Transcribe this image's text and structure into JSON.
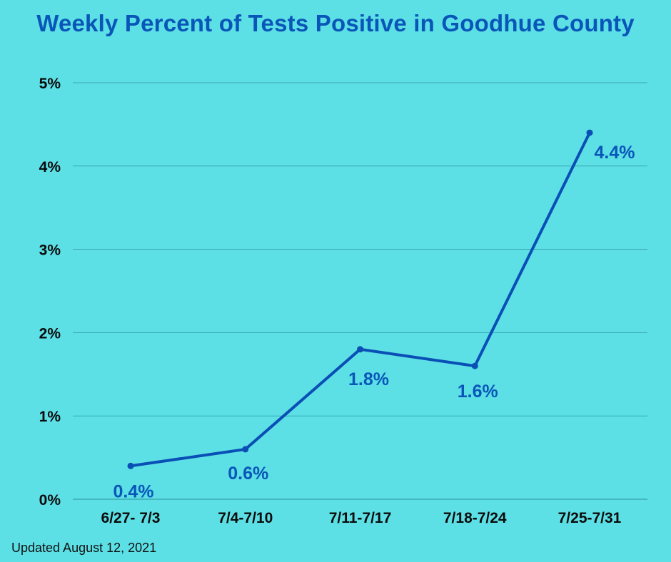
{
  "title": "Weekly Percent of Tests Positive in Goodhue County",
  "footnote": "Updated August 12,  2021",
  "colors": {
    "background": "#5ce0e6",
    "line": "#0a4fb5",
    "title": "#0a56b8",
    "gridline": "#3aa7b2"
  },
  "chart_data": {
    "type": "line",
    "title": "Weekly Percent of Tests Positive in Goodhue County",
    "xlabel": "",
    "ylabel": "",
    "categories": [
      "6/27- 7/3",
      "7/4-7/10",
      "7/11-7/17",
      "7/18-7/24",
      "7/25-7/31"
    ],
    "series": [
      {
        "values": [
          0.4,
          0.6,
          1.8,
          1.6,
          4.4
        ]
      }
    ],
    "data_labels": [
      "0.4%",
      "0.6%",
      "1.8%",
      "1.6%",
      "4.4%"
    ],
    "ylim": [
      0,
      5
    ],
    "yticks": [
      0,
      1,
      2,
      3,
      4,
      5
    ],
    "ytick_labels": [
      "0%",
      "1%",
      "2%",
      "3%",
      "4%",
      "5%"
    ],
    "grid": true,
    "legend": "none"
  }
}
